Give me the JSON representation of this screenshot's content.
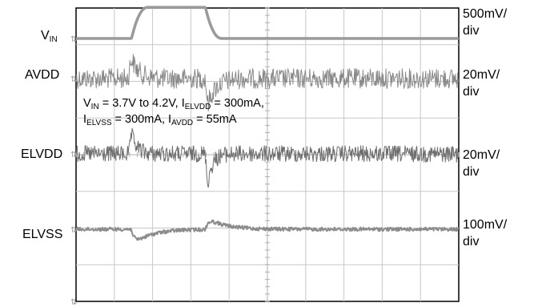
{
  "chart_data": {
    "type": "line",
    "title": "",
    "xlabel": "",
    "ylabel": "",
    "grid": true,
    "grid_divisions": {
      "x": 10,
      "y": 8
    },
    "series": [
      {
        "name": "VIN",
        "scale_label": "500mV/ div",
        "scale_line1": "500mV/",
        "scale_line2": "div",
        "color": "#9a9a9a",
        "low_level_div": 0.0,
        "high_level_div": 0.85,
        "rise_time_div": 0.95,
        "fall_time_div": 0.95,
        "rise_time_start_div": 1.45,
        "fall_time_start_div": 3.38
      },
      {
        "name": "AVDD",
        "scale_label": "20mV/ div",
        "scale_line1": "20mV/",
        "scale_line2": "div",
        "color": "#8a8a8a",
        "noise_pp_div": 0.55,
        "overshoot_at_rise_div": 0.85,
        "undershoot_at_fall_div": 0.95
      },
      {
        "name": "ELVDD",
        "scale_label": "20mV/ div",
        "scale_line1": "20mV/",
        "scale_line2": "div",
        "color": "#6e6e6e",
        "noise_pp_div": 0.45,
        "overshoot_at_rise_div": 0.8,
        "undershoot_at_fall_div": 1.3
      },
      {
        "name": "ELVSS",
        "scale_label": "100mV/ div",
        "scale_line1": "100mV/",
        "scale_line2": "div",
        "color": "#8c8c8c",
        "noise_pp_div": 0.1,
        "undershoot_at_rise_div": 0.45,
        "overshoot_at_fall_div": 0.35
      }
    ],
    "events": {
      "vin_rise_div": 1.45,
      "vin_fall_div": 3.38
    }
  },
  "labels": {
    "vin_main": "V",
    "vin_sub": "IN",
    "avdd": "AVDD",
    "elvdd": "ELVDD",
    "elvss": "ELVSS"
  },
  "annotation": {
    "l1_v": "V",
    "l1_v_sub": "IN",
    "l1_mid": " = 3.7V to 4.2V, I",
    "l1_i_sub": "ELVDD",
    "l1_end": " = 300mA,",
    "l2_i1": "I",
    "l2_i1_sub": "ELVSS",
    "l2_mid": " = 300mA, I",
    "l2_i2_sub": "AVDD",
    "l2_end": " = 55mA"
  }
}
